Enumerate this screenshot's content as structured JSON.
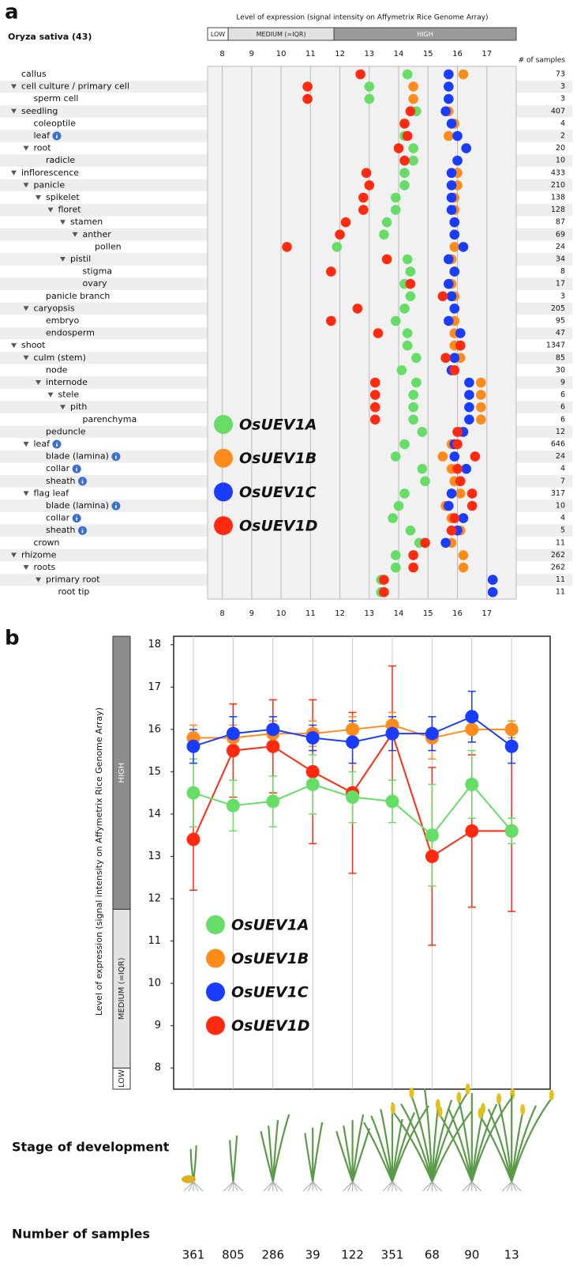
{
  "chart_data": [
    {
      "type": "dot",
      "panel_label": "a",
      "title": "Level of expression (signal intensity on Affymetrix Rice Genome Array)",
      "organism": "Oryza sativa (43)",
      "samples_label": "# of samples",
      "level_bands": [
        {
          "label": "LOW",
          "range": [
            7.5,
            8.2
          ]
        },
        {
          "label": "MEDIUM (=IQR)",
          "range": [
            8.2,
            11.8
          ]
        },
        {
          "label": "HIGH",
          "range": [
            11.8,
            18
          ]
        }
      ],
      "xlim": [
        7.5,
        18
      ],
      "xticks": [
        8,
        9,
        10,
        11,
        12,
        13,
        14,
        15,
        16,
        17
      ],
      "grid": true,
      "categories": [
        "callus",
        "cell culture / primary cell",
        "sperm cell",
        "seedling",
        "coleoptile",
        "leaf",
        "root",
        "radicle",
        "inflorescence",
        "panicle",
        "spikelet",
        "floret",
        "stamen",
        "anther",
        "pollen",
        "pistil",
        "stigma",
        "ovary",
        "panicle branch",
        "caryopsis",
        "embryo",
        "endosperm",
        "shoot",
        "culm (stem)",
        "node",
        "internode",
        "stele",
        "pith",
        "parenchyma",
        "peduncle",
        "leaf",
        "blade (lamina)",
        "collar",
        "sheath",
        "flag leaf",
        "blade (lamina)",
        "collar",
        "sheath",
        "crown",
        "rhizome",
        "roots",
        "primary root",
        "root tip"
      ],
      "levels": [
        0,
        0,
        1,
        0,
        1,
        1,
        1,
        2,
        0,
        1,
        2,
        3,
        4,
        5,
        6,
        4,
        5,
        5,
        2,
        1,
        2,
        2,
        0,
        1,
        2,
        2,
        3,
        4,
        5,
        2,
        1,
        2,
        2,
        2,
        1,
        2,
        2,
        2,
        1,
        0,
        1,
        2,
        3
      ],
      "info": [
        false,
        false,
        false,
        false,
        false,
        true,
        false,
        false,
        false,
        false,
        false,
        false,
        false,
        false,
        false,
        false,
        false,
        false,
        false,
        false,
        false,
        false,
        false,
        false,
        false,
        false,
        false,
        false,
        false,
        false,
        true,
        true,
        true,
        true,
        false,
        true,
        true,
        true,
        false,
        false,
        false,
        false,
        false
      ],
      "sample_counts": [
        73,
        3,
        3,
        407,
        4,
        2,
        20,
        10,
        433,
        210,
        138,
        128,
        87,
        69,
        24,
        34,
        8,
        17,
        3,
        205,
        95,
        47,
        1347,
        85,
        30,
        9,
        6,
        6,
        6,
        12,
        646,
        24,
        4,
        7,
        317,
        10,
        4,
        5,
        11,
        262,
        262,
        11,
        11
      ],
      "series": [
        {
          "name": "OsUEV1A",
          "color": "#66dd66",
          "values": [
            14.3,
            13.0,
            13.0,
            14.6,
            14.2,
            14.2,
            14.5,
            14.5,
            14.2,
            14.2,
            13.9,
            13.9,
            13.6,
            13.5,
            11.9,
            14.3,
            14.4,
            14.2,
            14.4,
            14.2,
            13.9,
            14.3,
            14.3,
            14.6,
            14.1,
            14.6,
            14.5,
            14.5,
            14.5,
            14.8,
            14.2,
            13.9,
            14.8,
            14.9,
            14.2,
            14.0,
            13.8,
            14.4,
            14.7,
            13.9,
            13.9,
            13.4,
            13.4
          ]
        },
        {
          "name": "OsUEV1B",
          "color": "#ff8c1a",
          "values": [
            16.2,
            14.5,
            14.5,
            15.7,
            15.9,
            15.7,
            16.3,
            16.0,
            16.0,
            16.0,
            15.9,
            15.9,
            15.9,
            15.9,
            15.9,
            15.8,
            15.9,
            15.8,
            15.9,
            15.9,
            15.9,
            15.9,
            15.9,
            16.1,
            15.9,
            16.8,
            16.8,
            16.8,
            16.8,
            16.1,
            15.8,
            15.5,
            15.8,
            15.9,
            16.1,
            15.6,
            15.8,
            16.1,
            15.8,
            16.2,
            16.2,
            17.2,
            17.2
          ]
        },
        {
          "name": "OsUEV1C",
          "color": "#1a3cff",
          "values": [
            15.7,
            15.7,
            15.7,
            15.6,
            15.8,
            16.0,
            16.3,
            16.0,
            15.8,
            15.8,
            15.8,
            15.8,
            15.9,
            15.9,
            16.2,
            15.7,
            15.9,
            15.7,
            15.8,
            15.9,
            15.7,
            16.1,
            16.1,
            15.9,
            15.8,
            16.4,
            16.4,
            16.4,
            16.4,
            16.2,
            15.9,
            15.9,
            16.3,
            16.1,
            15.8,
            15.7,
            16.2,
            16.0,
            15.6,
            null,
            null,
            17.2,
            17.2
          ]
        },
        {
          "name": "OsUEV1D",
          "color": "#ff2a10",
          "values": [
            12.7,
            10.9,
            10.9,
            14.4,
            14.2,
            14.3,
            14.0,
            14.2,
            12.9,
            13.0,
            12.8,
            12.8,
            12.2,
            12.0,
            10.2,
            13.6,
            11.7,
            14.4,
            15.5,
            12.6,
            11.7,
            13.3,
            16.1,
            15.6,
            15.9,
            13.2,
            13.2,
            13.2,
            13.2,
            16.0,
            16.0,
            16.6,
            16.0,
            16.1,
            16.5,
            16.5,
            15.9,
            15.8,
            14.9,
            14.5,
            14.5,
            13.5,
            13.5
          ]
        }
      ]
    },
    {
      "type": "line",
      "panel_label": "b",
      "ylabel": "Level of expression (signal intensity on Affymetrix Rice Genome Array)",
      "level_bands": [
        {
          "label": "LOW",
          "range": [
            7.5,
            8
          ]
        },
        {
          "label": "MEDIUM (=IQR)",
          "range": [
            8,
            11.75
          ]
        },
        {
          "label": "HIGH",
          "range": [
            11.75,
            18.2
          ]
        }
      ],
      "ylim": [
        7.5,
        18.2
      ],
      "yticks": [
        8,
        9,
        10,
        11,
        12,
        13,
        14,
        15,
        16,
        17,
        18
      ],
      "grid": true,
      "categories": [
        null,
        null,
        null,
        null,
        null,
        null,
        null,
        null,
        null
      ],
      "stage_label": "Stage of development",
      "samples_label": "Number of samples",
      "sample_counts": [
        361,
        805,
        286,
        39,
        122,
        351,
        68,
        90,
        13
      ],
      "series": [
        {
          "name": "OsUEV1A",
          "color": "#66dd66",
          "values": [
            14.5,
            14.2,
            14.3,
            14.7,
            14.4,
            14.3,
            13.5,
            14.7,
            13.6
          ],
          "errors": [
            0.8,
            0.6,
            0.6,
            0.7,
            0.6,
            0.5,
            1.2,
            0.8,
            0.3
          ]
        },
        {
          "name": "OsUEV1B",
          "color": "#ff8c1a",
          "values": [
            15.8,
            15.8,
            15.9,
            15.9,
            16.0,
            16.1,
            15.8,
            16.0,
            16.0
          ],
          "errors": [
            0.3,
            0.3,
            0.3,
            0.3,
            0.3,
            0.3,
            0.5,
            0.3,
            0.2
          ]
        },
        {
          "name": "OsUEV1C",
          "color": "#1a3cff",
          "values": [
            15.6,
            15.9,
            16.0,
            15.8,
            15.7,
            15.9,
            15.9,
            16.3,
            15.6
          ],
          "errors": [
            0.4,
            0.4,
            0.3,
            0.3,
            0.5,
            0.4,
            0.4,
            0.6,
            0.4
          ]
        },
        {
          "name": "OsUEV1D",
          "color": "#ff2a10",
          "values": [
            13.4,
            15.5,
            15.6,
            15.0,
            14.5,
            15.9,
            13.0,
            13.6,
            13.6
          ],
          "errors": [
            1.2,
            1.1,
            1.1,
            1.7,
            1.9,
            1.6,
            2.1,
            1.8,
            1.9
          ]
        }
      ]
    }
  ]
}
